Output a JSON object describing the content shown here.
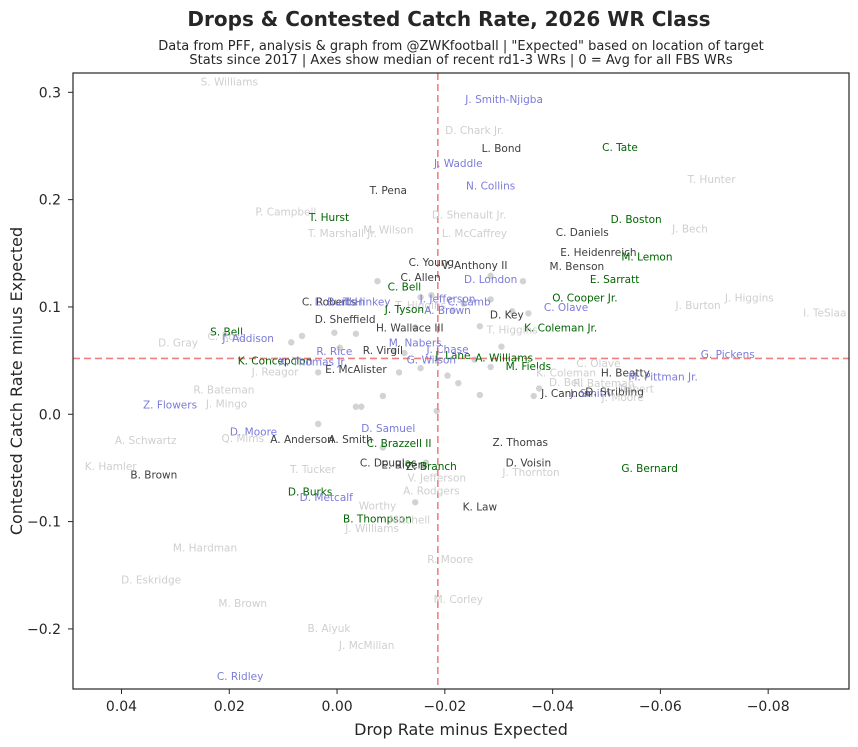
{
  "chart_data": {
    "type": "scatter",
    "title": "Drops & Contested Catch Rate, 2026 WR Class",
    "subtitle_lines": [
      "Data from PFF, analysis & graph from @ZWKfootball | \"Expected\" based on location of target",
      "Stats since 2017 | Axes show median of recent rd1-3 WRs | 0 = Avg for all FBS WRs"
    ],
    "xlabel": "Drop Rate minus Expected",
    "ylabel": "Contested Catch Rate minus Expected",
    "xlim": [
      0.049,
      -0.095
    ],
    "ylim": [
      -0.256,
      0.318
    ],
    "x_inverted": true,
    "xticks": [
      0.04,
      0.02,
      0.0,
      -0.02,
      -0.04,
      -0.06,
      -0.08
    ],
    "xtick_labels": [
      "0.04",
      "0.02",
      "0.00",
      "−0.02",
      "−0.04",
      "−0.06",
      "−0.08"
    ],
    "yticks": [
      0.3,
      0.2,
      0.1,
      0.0,
      -0.1,
      -0.2
    ],
    "ytick_labels": [
      "0.3",
      "0.2",
      "0.1",
      "0.0",
      "−0.1",
      "−0.2"
    ],
    "median_lines": {
      "x": -0.0187,
      "y": 0.052,
      "color": "#f08080"
    },
    "colors": {
      "dark": "#3d3d3d",
      "green": "#006400",
      "blue": "#7b7bdb",
      "faint": "#cfcfcf"
    },
    "points": [
      {
        "label": "S. Williams",
        "x": 0.02,
        "y": 0.31,
        "group": "faint"
      },
      {
        "label": "J. Smith-Njigba",
        "x": -0.031,
        "y": 0.294,
        "group": "blue"
      },
      {
        "label": "D. Chark Jr.",
        "x": -0.0255,
        "y": 0.265,
        "group": "faint"
      },
      {
        "label": "L. Bond",
        "x": -0.0305,
        "y": 0.248,
        "group": "dark"
      },
      {
        "label": "C. Tate",
        "x": -0.0525,
        "y": 0.249,
        "group": "green"
      },
      {
        "label": "J. Waddle",
        "x": -0.0225,
        "y": 0.234,
        "group": "blue"
      },
      {
        "label": "N. Collins",
        "x": -0.0285,
        "y": 0.213,
        "group": "blue"
      },
      {
        "label": "T. Hunter",
        "x": -0.0695,
        "y": 0.219,
        "group": "faint"
      },
      {
        "label": "T. Pena",
        "x": -0.0095,
        "y": 0.209,
        "group": "dark"
      },
      {
        "label": "P. Campbell",
        "x": 0.0095,
        "y": 0.189,
        "group": "faint"
      },
      {
        "label": "T. Hurst",
        "x": 0.0015,
        "y": 0.184,
        "group": "green"
      },
      {
        "label": "D. Shenault Jr.",
        "x": -0.0245,
        "y": 0.186,
        "group": "faint"
      },
      {
        "label": "D. Boston",
        "x": -0.0555,
        "y": 0.182,
        "group": "green"
      },
      {
        "label": "J. Bech",
        "x": -0.0655,
        "y": 0.173,
        "group": "faint"
      },
      {
        "label": "T. Marshall Jr.",
        "x": -0.001,
        "y": 0.169,
        "group": "faint"
      },
      {
        "label": "M. Wilson",
        "x": -0.0095,
        "y": 0.172,
        "group": "faint"
      },
      {
        "label": "L. McCaffrey",
        "x": -0.0255,
        "y": 0.169,
        "group": "faint"
      },
      {
        "label": "C. Daniels",
        "x": -0.0455,
        "y": 0.17,
        "group": "dark"
      },
      {
        "label": "E. Heidenreich",
        "x": -0.0485,
        "y": 0.151,
        "group": "dark"
      },
      {
        "label": "M. Lemon",
        "x": -0.0575,
        "y": 0.147,
        "group": "green"
      },
      {
        "label": "C. Young",
        "x": -0.0175,
        "y": 0.142,
        "group": "dark"
      },
      {
        "label": "V. Anthony II",
        "x": -0.0255,
        "y": 0.139,
        "group": "dark"
      },
      {
        "label": "M. Benson",
        "x": -0.0445,
        "y": 0.138,
        "group": "dark"
      },
      {
        "label": "C. Allen",
        "x": -0.0155,
        "y": 0.128,
        "group": "dark"
      },
      {
        "label": "D. London",
        "x": -0.0285,
        "y": 0.126,
        "group": "blue"
      },
      {
        "label": "E. Sarratt",
        "x": -0.0515,
        "y": 0.126,
        "group": "green"
      },
      {
        "label": "C. Bell",
        "x": -0.0125,
        "y": 0.119,
        "group": "green"
      },
      {
        "label": "J. Higgins",
        "x": -0.0765,
        "y": 0.109,
        "group": "faint"
      },
      {
        "label": "J. Jefferson",
        "x": -0.0205,
        "y": 0.108,
        "group": "blue"
      },
      {
        "label": "O. Cooper Jr.",
        "x": -0.046,
        "y": 0.109,
        "group": "green"
      },
      {
        "label": "C. Roberts",
        "x": 0.0015,
        "y": 0.105,
        "group": "dark"
      },
      {
        "label": "C. Lamb",
        "x": -0.0245,
        "y": 0.105,
        "group": "blue"
      },
      {
        "label": "L. Burden",
        "x": -0.0005,
        "y": 0.105,
        "group": "blue"
      },
      {
        "label": "T. Hinkey",
        "x": -0.0055,
        "y": 0.105,
        "group": "blue"
      },
      {
        "label": "T. Higgins",
        "x": -0.0155,
        "y": 0.102,
        "group": "faint"
      },
      {
        "label": "J. Burton",
        "x": -0.067,
        "y": 0.102,
        "group": "faint"
      },
      {
        "label": "C. Olave",
        "x": -0.0425,
        "y": 0.1,
        "group": "blue"
      },
      {
        "label": "J. Tyson",
        "x": -0.0125,
        "y": 0.098,
        "group": "green"
      },
      {
        "label": "A. Brown",
        "x": -0.0205,
        "y": 0.097,
        "group": "blue"
      },
      {
        "label": "D. Key",
        "x": -0.0315,
        "y": 0.093,
        "group": "dark"
      },
      {
        "label": "I. TeSlaa",
        "x": -0.0905,
        "y": 0.095,
        "group": "faint"
      },
      {
        "label": "D. Sheffield",
        "x": -0.0015,
        "y": 0.089,
        "group": "dark"
      },
      {
        "label": "K. Coleman Jr.",
        "x": -0.0415,
        "y": 0.081,
        "group": "green"
      },
      {
        "label": "T. Higgins",
        "x": -0.0325,
        "y": 0.079,
        "group": "faint"
      },
      {
        "label": "H. Wallace III",
        "x": -0.0135,
        "y": 0.081,
        "group": "dark"
      },
      {
        "label": "S. Bell",
        "x": 0.0205,
        "y": 0.077,
        "group": "green"
      },
      {
        "label": "C. Ross",
        "x": 0.0205,
        "y": 0.073,
        "group": "faint"
      },
      {
        "label": "J. Addison",
        "x": 0.0165,
        "y": 0.071,
        "group": "blue"
      },
      {
        "label": "D. Gray",
        "x": 0.0295,
        "y": 0.067,
        "group": "faint"
      },
      {
        "label": "M. Nabers",
        "x": -0.0145,
        "y": 0.067,
        "group": "blue"
      },
      {
        "label": "J. Chase",
        "x": -0.0205,
        "y": 0.061,
        "group": "blue"
      },
      {
        "label": "R. Rice",
        "x": 0.0005,
        "y": 0.059,
        "group": "blue"
      },
      {
        "label": "R. Virgil",
        "x": -0.0085,
        "y": 0.06,
        "group": "dark"
      },
      {
        "label": "G. Pickens",
        "x": -0.0725,
        "y": 0.056,
        "group": "blue"
      },
      {
        "label": "J. Lane",
        "x": -0.0215,
        "y": 0.055,
        "group": "green"
      },
      {
        "label": "A. Williams",
        "x": -0.031,
        "y": 0.053,
        "group": "green"
      },
      {
        "label": "G. Wilson",
        "x": -0.0175,
        "y": 0.051,
        "group": "blue"
      },
      {
        "label": "K. Concepcion",
        "x": 0.0115,
        "y": 0.05,
        "group": "green"
      },
      {
        "label": "X. Thomas Jr.",
        "x": 0.0045,
        "y": 0.049,
        "group": "blue"
      },
      {
        "label": "M. Fields",
        "x": -0.0355,
        "y": 0.045,
        "group": "green"
      },
      {
        "label": "C. Olave",
        "x": -0.0485,
        "y": 0.048,
        "group": "faint"
      },
      {
        "label": "J. Reagor",
        "x": 0.0115,
        "y": 0.04,
        "group": "faint"
      },
      {
        "label": "E. McAlister",
        "x": -0.0035,
        "y": 0.042,
        "group": "dark"
      },
      {
        "label": "K. Coleman",
        "x": -0.0425,
        "y": 0.039,
        "group": "faint"
      },
      {
        "label": "H. Beatty",
        "x": -0.0535,
        "y": 0.039,
        "group": "dark"
      },
      {
        "label": "M. Pittman Jr.",
        "x": -0.0605,
        "y": 0.035,
        "group": "blue"
      },
      {
        "label": "D. Bell",
        "x": -0.0425,
        "y": 0.03,
        "group": "faint"
      },
      {
        "label": "R. Bateman",
        "x": 0.021,
        "y": 0.023,
        "group": "faint"
      },
      {
        "label": "R. Bateman",
        "x": -0.0495,
        "y": 0.029,
        "group": "faint"
      },
      {
        "label": "Tolbert",
        "x": -0.0555,
        "y": 0.024,
        "group": "faint"
      },
      {
        "label": "J. Cannon",
        "x": -0.0425,
        "y": 0.02,
        "group": "dark"
      },
      {
        "label": "J. Smith",
        "x": -0.047,
        "y": 0.02,
        "group": "blue"
      },
      {
        "label": "D. Stribling",
        "x": -0.0515,
        "y": 0.021,
        "group": "dark"
      },
      {
        "label": "J. Moore",
        "x": -0.053,
        "y": 0.016,
        "group": "faint"
      },
      {
        "label": "Z. Flowers",
        "x": 0.031,
        "y": 0.009,
        "group": "blue"
      },
      {
        "label": "J. Mingo",
        "x": 0.0205,
        "y": 0.01,
        "group": "faint"
      },
      {
        "label": "D. Moore",
        "x": 0.0155,
        "y": -0.016,
        "group": "blue"
      },
      {
        "label": "D. Samuel",
        "x": -0.0095,
        "y": -0.013,
        "group": "blue"
      },
      {
        "label": "Q. Mims",
        "x": 0.0175,
        "y": -0.022,
        "group": "faint"
      },
      {
        "label": "A. Schwartz",
        "x": 0.0355,
        "y": -0.024,
        "group": "faint"
      },
      {
        "label": "A. Anderson",
        "x": 0.0065,
        "y": -0.023,
        "group": "dark"
      },
      {
        "label": "A. Smith",
        "x": -0.0025,
        "y": -0.023,
        "group": "dark"
      },
      {
        "label": "C. Brazzell II",
        "x": -0.0115,
        "y": -0.027,
        "group": "green"
      },
      {
        "label": "Z. Thomas",
        "x": -0.034,
        "y": -0.026,
        "group": "dark"
      },
      {
        "label": "C. Douglas",
        "x": -0.0095,
        "y": -0.045,
        "group": "dark"
      },
      {
        "label": "E. Rivers",
        "x": -0.0125,
        "y": -0.047,
        "group": "dark"
      },
      {
        "label": "Z. Branch",
        "x": -0.0175,
        "y": -0.048,
        "group": "green"
      },
      {
        "label": "D. Voisin",
        "x": -0.0355,
        "y": -0.045,
        "group": "dark"
      },
      {
        "label": "G. Bernard",
        "x": -0.058,
        "y": -0.05,
        "group": "green"
      },
      {
        "label": "K. Hamler",
        "x": 0.042,
        "y": -0.048,
        "group": "faint"
      },
      {
        "label": "T. Tucker",
        "x": 0.0045,
        "y": -0.051,
        "group": "faint"
      },
      {
        "label": "B. Brown",
        "x": 0.034,
        "y": -0.056,
        "group": "dark"
      },
      {
        "label": "J. Thornton",
        "x": -0.036,
        "y": -0.054,
        "group": "faint"
      },
      {
        "label": "V. Jefferson",
        "x": -0.0185,
        "y": -0.059,
        "group": "faint"
      },
      {
        "label": "A. Rodgers",
        "x": -0.0175,
        "y": -0.071,
        "group": "faint"
      },
      {
        "label": "D. Burks",
        "x": 0.005,
        "y": -0.072,
        "group": "green"
      },
      {
        "label": "D. Metcalf",
        "x": 0.002,
        "y": -0.077,
        "group": "blue"
      },
      {
        "label": "K. Law",
        "x": -0.0265,
        "y": -0.086,
        "group": "dark"
      },
      {
        "label": "Worthy",
        "x": -0.0075,
        "y": -0.085,
        "group": "faint"
      },
      {
        "label": "B. Thompson",
        "x": -0.0075,
        "y": -0.097,
        "group": "green"
      },
      {
        "label": "Mitchell",
        "x": -0.0135,
        "y": -0.098,
        "group": "faint"
      },
      {
        "label": "J. Williams",
        "x": -0.0065,
        "y": -0.106,
        "group": "faint"
      },
      {
        "label": "M. Hardman",
        "x": 0.0245,
        "y": -0.124,
        "group": "faint"
      },
      {
        "label": "R. Moore",
        "x": -0.021,
        "y": -0.135,
        "group": "faint"
      },
      {
        "label": "D. Eskridge",
        "x": 0.0345,
        "y": -0.154,
        "group": "faint"
      },
      {
        "label": "M. Corley",
        "x": -0.0225,
        "y": -0.172,
        "group": "faint"
      },
      {
        "label": "M. Brown",
        "x": 0.0175,
        "y": -0.176,
        "group": "faint"
      },
      {
        "label": "B. Aiyuk",
        "x": 0.0015,
        "y": -0.199,
        "group": "faint"
      },
      {
        "label": "J. McMillan",
        "x": -0.0055,
        "y": -0.215,
        "group": "faint"
      },
      {
        "label": "C. Ridley",
        "x": 0.018,
        "y": -0.244,
        "group": "blue"
      }
    ],
    "markers": [
      {
        "x": -0.0075,
        "y": 0.124
      },
      {
        "x": -0.0345,
        "y": 0.124
      },
      {
        "x": -0.0285,
        "y": 0.129
      },
      {
        "x": -0.0155,
        "y": 0.109
      },
      {
        "x": -0.0175,
        "y": 0.111
      },
      {
        "x": -0.0235,
        "y": 0.103
      },
      {
        "x": -0.0285,
        "y": 0.107
      },
      {
        "x": -0.0325,
        "y": 0.096
      },
      {
        "x": -0.0355,
        "y": 0.094
      },
      {
        "x": -0.0215,
        "y": 0.097
      },
      {
        "x": 0.0005,
        "y": 0.076
      },
      {
        "x": -0.0035,
        "y": 0.075
      },
      {
        "x": -0.0265,
        "y": 0.082
      },
      {
        "x": -0.0145,
        "y": 0.081
      },
      {
        "x": 0.0065,
        "y": 0.073
      },
      {
        "x": 0.0085,
        "y": 0.067
      },
      {
        "x": -0.0005,
        "y": 0.062
      },
      {
        "x": -0.0105,
        "y": 0.059
      },
      {
        "x": -0.0125,
        "y": 0.057
      },
      {
        "x": -0.0305,
        "y": 0.063
      },
      {
        "x": -0.0255,
        "y": 0.051
      },
      {
        "x": -0.0285,
        "y": 0.044
      },
      {
        "x": 0.0035,
        "y": 0.039
      },
      {
        "x": -0.0115,
        "y": 0.039
      },
      {
        "x": -0.0155,
        "y": 0.043
      },
      {
        "x": -0.0205,
        "y": 0.036
      },
      {
        "x": -0.0225,
        "y": 0.029
      },
      {
        "x": -0.0265,
        "y": 0.018
      },
      {
        "x": -0.0375,
        "y": 0.024
      },
      {
        "x": -0.0365,
        "y": 0.017
      },
      {
        "x": -0.0085,
        "y": 0.017
      },
      {
        "x": -0.0035,
        "y": 0.007
      },
      {
        "x": -0.0045,
        "y": 0.007
      },
      {
        "x": -0.0185,
        "y": 0.003
      },
      {
        "x": 0.0035,
        "y": -0.009
      },
      {
        "x": -0.0085,
        "y": -0.031
      },
      {
        "x": -0.0165,
        "y": -0.045
      },
      {
        "x": -0.0145,
        "y": -0.082
      }
    ]
  }
}
